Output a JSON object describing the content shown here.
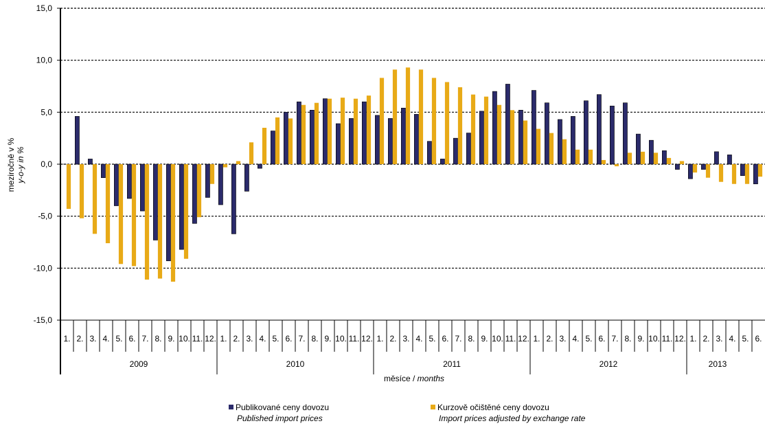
{
  "chart_data": {
    "type": "bar",
    "ylabel_cz": "meziročně v %",
    "ylabel_en": "y-o-y in %",
    "xlabel_cz": "měsíce / ",
    "xlabel_en": "months",
    "ylim": [
      -15,
      15
    ],
    "yticks": [
      "15,0",
      "10,0",
      "5,0",
      "0,0",
      "-5,0",
      "-10,0",
      "-15,0"
    ],
    "grid": "dashed horizontal",
    "month_labels": [
      "1.",
      "2.",
      "3.",
      "4.",
      "5.",
      "6.",
      "7.",
      "8.",
      "9.",
      "10.",
      "11.",
      "12.",
      "1.",
      "2.",
      "3.",
      "4.",
      "5.",
      "6.",
      "7.",
      "8.",
      "9.",
      "10.",
      "11.",
      "12.",
      "1.",
      "2.",
      "3.",
      "4.",
      "5.",
      "6.",
      "7.",
      "8.",
      "9.",
      "10.",
      "11.",
      "12.",
      "1.",
      "2.",
      "3.",
      "4.",
      "5.",
      "6.",
      "7.",
      "8.",
      "9.",
      "10.",
      "11.",
      "12.",
      "1.",
      "2.",
      "3.",
      "4.",
      "5.",
      "6."
    ],
    "years": [
      {
        "label": "2009",
        "months": 12
      },
      {
        "label": "2010",
        "months": 12
      },
      {
        "label": "2011",
        "months": 12
      },
      {
        "label": "2012",
        "months": 12
      },
      {
        "label": "2013",
        "months": 6
      }
    ],
    "series": [
      {
        "name": "Publikované ceny dovozu",
        "name_en": "Published import prices",
        "color": "#2b2b6b",
        "values": [
          0.0,
          4.6,
          0.5,
          -1.3,
          -4.0,
          -3.3,
          -4.5,
          -7.3,
          -9.3,
          -8.2,
          -5.7,
          -3.2,
          -3.9,
          -6.7,
          -2.6,
          -0.4,
          3.2,
          5.0,
          6.0,
          5.2,
          6.3,
          3.9,
          4.4,
          6.0,
          4.7,
          4.4,
          5.4,
          4.8,
          2.2,
          0.5,
          2.5,
          3.0,
          5.1,
          7.0,
          7.7,
          5.2,
          7.1,
          5.9,
          4.3,
          4.6,
          6.1,
          6.7,
          5.6,
          5.9,
          2.9,
          2.3,
          1.3,
          -0.5,
          -1.4,
          -0.5,
          1.2,
          0.9,
          -1.1,
          -1.9
        ]
      },
      {
        "name": "Kurzově očištěné ceny dovozu",
        "name_en": "Import prices adjusted by exchange rate",
        "color": "#e8aa17",
        "values": [
          -4.3,
          -5.2,
          -6.7,
          -7.6,
          -9.6,
          -9.8,
          -11.1,
          -11.0,
          -11.3,
          -9.1,
          -5.1,
          -1.9,
          -0.3,
          0.3,
          2.1,
          3.5,
          4.5,
          4.4,
          5.7,
          5.9,
          6.3,
          6.4,
          6.3,
          6.6,
          8.3,
          9.1,
          9.3,
          9.1,
          8.3,
          7.9,
          7.4,
          6.7,
          6.5,
          5.7,
          5.2,
          4.2,
          3.4,
          3.0,
          2.4,
          1.4,
          1.4,
          0.4,
          -0.2,
          1.1,
          1.2,
          1.1,
          0.6,
          0.3,
          -0.8,
          -1.3,
          -1.7,
          -1.9,
          -1.9,
          -1.2
        ]
      }
    ],
    "legend_placement": "bottom"
  }
}
